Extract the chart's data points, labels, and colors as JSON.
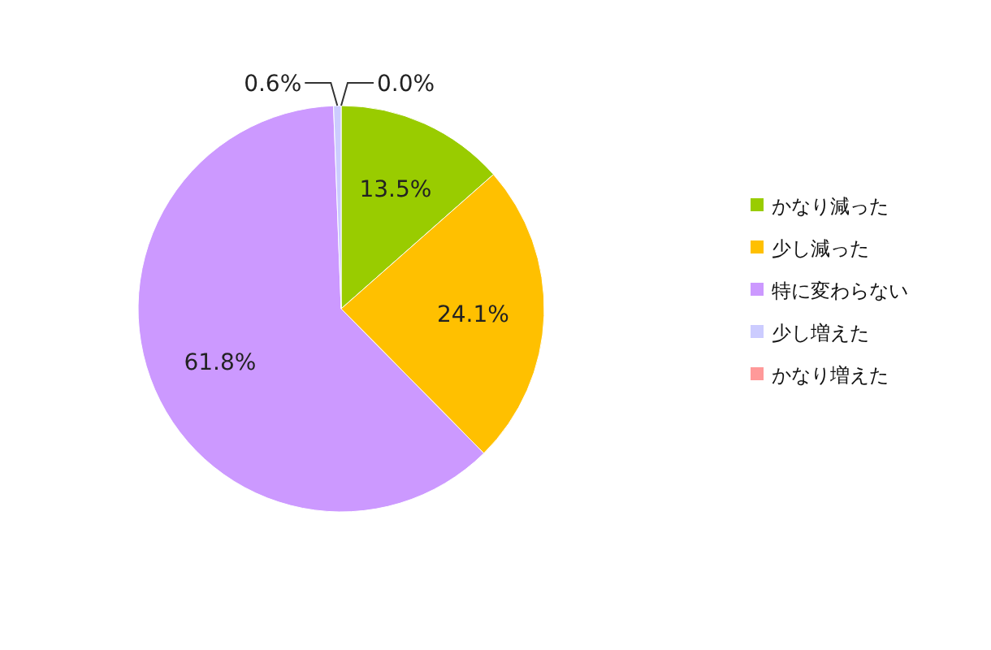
{
  "chart_data": {
    "type": "pie",
    "categories": [
      "かなり減った",
      "少し減った",
      "特に変わらない",
      "少し増えた",
      "かなり増えた"
    ],
    "values": [
      13.5,
      24.1,
      61.8,
      0.6,
      0.0
    ],
    "colors": [
      "#99cc00",
      "#ffc000",
      "#cc99ff",
      "#ccccff",
      "#ff9999"
    ],
    "value_labels": [
      "13.5%",
      "24.1%",
      "61.8%",
      "0.6%",
      "0.0%"
    ],
    "legend": "right"
  }
}
